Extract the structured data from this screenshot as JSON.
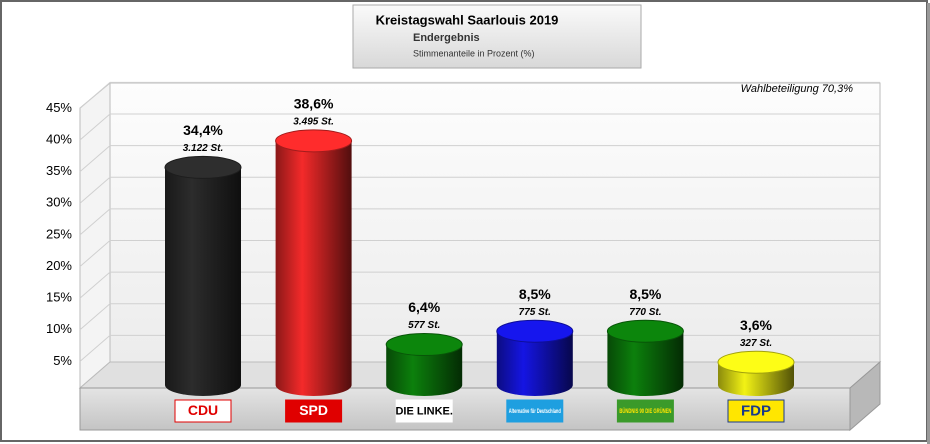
{
  "chart_data": {
    "type": "bar3d",
    "title": "Kreistagswahl Saarlouis 2019",
    "subtitle": "Endergebnis",
    "unit_note": "Stimmenanteile in Prozent (%)",
    "annotation": "Wahlbeteiligung 70,3%",
    "categories": [
      "CDU",
      "SPD",
      "DIE LINKE.",
      "Alternative für Deutschland",
      "BÜNDNIS 90 DIE GRÜNEN",
      "FDP"
    ],
    "values": [
      34.4,
      38.6,
      6.4,
      8.5,
      8.5,
      3.6
    ],
    "value_labels": [
      "34,4%",
      "38,6%",
      "6,4%",
      "8,5%",
      "8,5%",
      "3,6%"
    ],
    "votes": [
      3122,
      3495,
      577,
      775,
      770,
      327
    ],
    "vote_labels": [
      "3.122 St.",
      "3.495 St.",
      "577 St.",
      "775 St.",
      "770 St.",
      "327 St."
    ],
    "colors": [
      "#2a2a2a",
      "#e82828",
      "#0b7a0b",
      "#1414d8",
      "#0b7a0b",
      "#e6e614"
    ],
    "ylim": [
      0,
      45
    ],
    "yticks": [
      {
        "value": 5,
        "label": "5%"
      },
      {
        "value": 10,
        "label": "10%"
      },
      {
        "value": 15,
        "label": "15%"
      },
      {
        "value": 20,
        "label": "20%"
      },
      {
        "value": 25,
        "label": "25%"
      },
      {
        "value": 30,
        "label": "30%"
      },
      {
        "value": 35,
        "label": "35%"
      },
      {
        "value": 40,
        "label": "40%"
      },
      {
        "value": 45,
        "label": "45%"
      }
    ],
    "grid": true
  }
}
